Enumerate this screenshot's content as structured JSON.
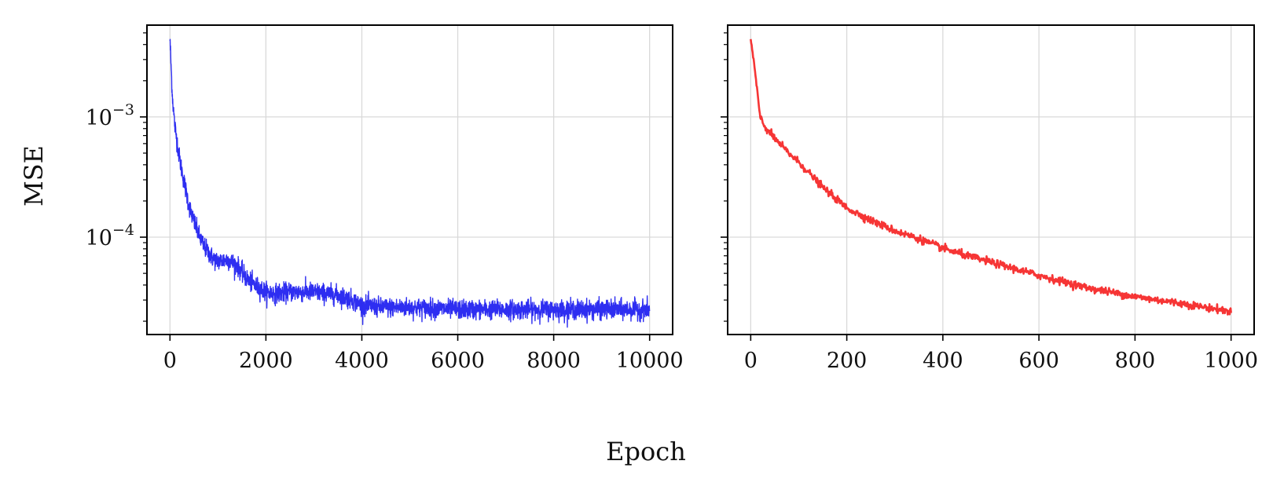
{
  "colors": {
    "left_series": "#2323f0",
    "right_series": "#f52a2a",
    "grid": "#d9d9d9",
    "axis": "#000000"
  },
  "figure": {
    "xlabel": "Epoch",
    "ylabel": "MSE"
  },
  "chart_data": [
    {
      "type": "line",
      "title": "",
      "yscale": "log",
      "grid": true,
      "xlim": [
        -480,
        10480
      ],
      "ylim": [
        1.55e-05,
        0.0058
      ],
      "xticks": [
        0,
        2000,
        4000,
        6000,
        8000,
        10000
      ],
      "xtick_labels": [
        "0",
        "2000",
        "4000",
        "6000",
        "8000",
        "10000"
      ],
      "yticks": [
        0.001,
        0.0001
      ],
      "ytick_labels": [
        {
          "base": "10",
          "exp": "−3"
        },
        {
          "base": "10",
          "exp": "−4"
        }
      ],
      "series": [
        {
          "color": "#2323f0",
          "x": [
            0,
            50,
            100,
            200,
            300,
            400,
            500,
            600,
            700,
            800,
            900,
            1000,
            1200,
            1400,
            1600,
            1800,
            2000,
            2200,
            2500,
            3000,
            3500,
            3800,
            4000,
            4500,
            5000,
            6000,
            7000,
            8000,
            9000,
            10000
          ],
          "y": [
            0.0044,
            0.0015,
            0.00085,
            0.00045,
            0.00028,
            0.00018,
            0.000135,
            0.000105,
            8.5e-05,
            7.5e-05,
            6.6e-05,
            6.3e-05,
            6.5e-05,
            5.8e-05,
            4.5e-05,
            3.9e-05,
            3.5e-05,
            3.4e-05,
            3.5e-05,
            3.5e-05,
            3.3e-05,
            3e-05,
            2.7e-05,
            2.6e-05,
            2.6e-05,
            2.5e-05,
            2.5e-05,
            2.5e-05,
            2.5e-05,
            2.5e-05
          ],
          "noise": 0.09
        }
      ]
    },
    {
      "type": "line",
      "title": "",
      "yscale": "log",
      "grid": true,
      "xlim": [
        -48,
        1048
      ],
      "ylim": [
        1.55e-05,
        0.0058
      ],
      "xticks": [
        0,
        200,
        400,
        600,
        800,
        1000
      ],
      "xtick_labels": [
        "0",
        "200",
        "400",
        "600",
        "800",
        "1000"
      ],
      "yticks": [
        0.001,
        0.0001
      ],
      "ytick_labels": [],
      "series": [
        {
          "color": "#f52a2a",
          "x": [
            0,
            5,
            10,
            15,
            20,
            30,
            50,
            75,
            100,
            150,
            200,
            250,
            300,
            350,
            400,
            450,
            500,
            600,
            700,
            800,
            900,
            1000
          ],
          "y": [
            0.0043,
            0.0032,
            0.0022,
            0.0014,
            0.001,
            0.00082,
            0.00066,
            0.00052,
            0.00042,
            0.00026,
            0.000175,
            0.000138,
            0.000113,
            9.7e-05,
            8.1e-05,
            7e-05,
            6.2e-05,
            4.8e-05,
            3.8e-05,
            3.2e-05,
            2.8e-05,
            2.4e-05
          ]
        }
      ]
    }
  ]
}
